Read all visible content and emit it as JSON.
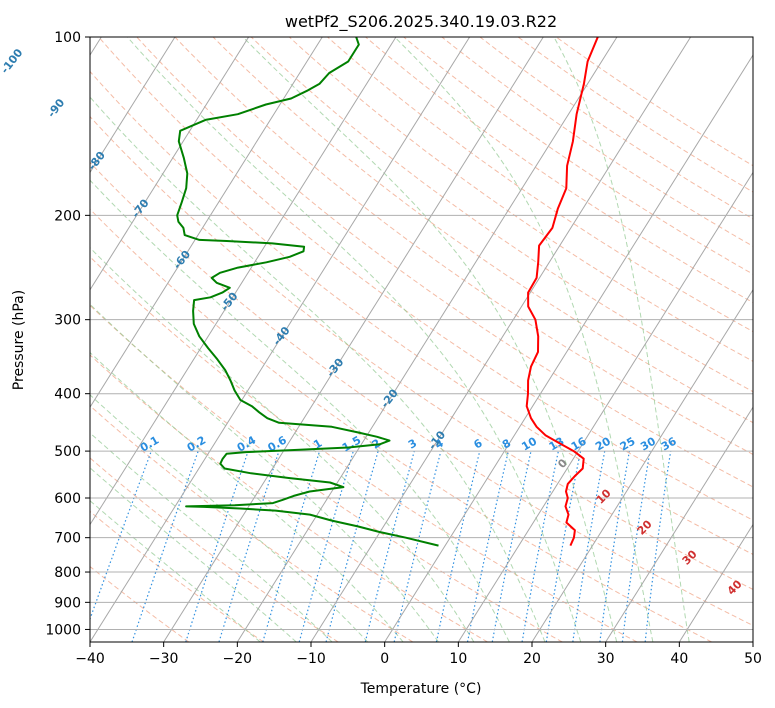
{
  "chart_data": {
    "type": "line",
    "subtype": "skew-t log-p",
    "title": "wetPf2_S206.2025.340.19.03.R22",
    "xlabel": "Temperature (°C)",
    "ylabel": "Pressure (hPa)",
    "xlim": [
      -40,
      50
    ],
    "ylim": [
      1050,
      100
    ],
    "y_scale": "log",
    "grid": true,
    "x_ticks": [
      -40,
      -30,
      -20,
      -10,
      0,
      10,
      20,
      30,
      40,
      50
    ],
    "x_tick_labels": [
      "−40",
      "−30",
      "−20",
      "−10",
      "0",
      "10",
      "20",
      "30",
      "40",
      "50"
    ],
    "y_ticks": [
      1000,
      900,
      800,
      700,
      600,
      500,
      400,
      300,
      200,
      100
    ],
    "y_tick_labels": [
      "1000",
      "900",
      "800",
      "700",
      "600",
      "500",
      "400",
      "300",
      "200",
      "100"
    ],
    "series": [
      {
        "color": "#ff0000",
        "points": [
          [
            722,
            17.0
          ],
          [
            700,
            16.8
          ],
          [
            680,
            16.3
          ],
          [
            660,
            14.5
          ],
          [
            640,
            14.1
          ],
          [
            620,
            13.0
          ],
          [
            600,
            12.6
          ],
          [
            585,
            11.8
          ],
          [
            568,
            11.4
          ],
          [
            550,
            11.7
          ],
          [
            535,
            12.1
          ],
          [
            515,
            11.4
          ],
          [
            500,
            9.4
          ],
          [
            485,
            6.8
          ],
          [
            470,
            4.2
          ],
          [
            455,
            2.3
          ],
          [
            440,
            0.8
          ],
          [
            420,
            -0.8
          ],
          [
            400,
            -1.7
          ],
          [
            380,
            -2.8
          ],
          [
            360,
            -3.6
          ],
          [
            340,
            -3.9
          ],
          [
            320,
            -5.2
          ],
          [
            300,
            -7.0
          ],
          [
            285,
            -9.1
          ],
          [
            270,
            -10.3
          ],
          [
            255,
            -10.4
          ],
          [
            240,
            -11.5
          ],
          [
            225,
            -12.8
          ],
          [
            210,
            -12.5
          ],
          [
            195,
            -13.4
          ],
          [
            180,
            -14.0
          ],
          [
            165,
            -15.8
          ],
          [
            150,
            -17.1
          ],
          [
            135,
            -18.9
          ],
          [
            120,
            -20.5
          ],
          [
            110,
            -21.9
          ],
          [
            100,
            -22.6
          ]
        ]
      },
      {
        "color": "#008000",
        "points": [
          [
            722,
            -0.9
          ],
          [
            700,
            -6.0
          ],
          [
            685,
            -10.0
          ],
          [
            670,
            -13.5
          ],
          [
            655,
            -17.5
          ],
          [
            640,
            -21.0
          ],
          [
            630,
            -26.0
          ],
          [
            625,
            -31.0
          ],
          [
            621,
            -36.0
          ],
          [
            620,
            -38.5
          ],
          [
            617,
            -32.0
          ],
          [
            612,
            -27.0
          ],
          [
            605,
            -26.0
          ],
          [
            595,
            -24.8
          ],
          [
            585,
            -23.0
          ],
          [
            575,
            -18.8
          ],
          [
            565,
            -21.0
          ],
          [
            555,
            -27.0
          ],
          [
            545,
            -32.5
          ],
          [
            535,
            -36.5
          ],
          [
            525,
            -37.5
          ],
          [
            515,
            -37.6
          ],
          [
            505,
            -37.5
          ],
          [
            502,
            -35.0
          ],
          [
            498,
            -29.0
          ],
          [
            493,
            -21.5
          ],
          [
            487,
            -17.5
          ],
          [
            480,
            -16.5
          ],
          [
            473,
            -18.5
          ],
          [
            465,
            -21.5
          ],
          [
            455,
            -25.5
          ],
          [
            448,
            -33.0
          ],
          [
            440,
            -35.0
          ],
          [
            430,
            -36.6
          ],
          [
            420,
            -38.1
          ],
          [
            410,
            -40.2
          ],
          [
            395,
            -41.8
          ],
          [
            380,
            -43.2
          ],
          [
            365,
            -44.8
          ],
          [
            350,
            -46.8
          ],
          [
            335,
            -49.0
          ],
          [
            320,
            -51.2
          ],
          [
            305,
            -53.0
          ],
          [
            290,
            -54.2
          ],
          [
            278,
            -55.0
          ],
          [
            275,
            -53.0
          ],
          [
            270,
            -51.8
          ],
          [
            265,
            -51.2
          ],
          [
            260,
            -53.4
          ],
          [
            255,
            -54.5
          ],
          [
            250,
            -53.8
          ],
          [
            245,
            -51.8
          ],
          [
            240,
            -48.4
          ],
          [
            235,
            -45.7
          ],
          [
            230,
            -44.3
          ],
          [
            226,
            -44.6
          ],
          [
            223,
            -49.2
          ],
          [
            221,
            -55.6
          ],
          [
            220,
            -59.4
          ],
          [
            216,
            -61.8
          ],
          [
            210,
            -62.6
          ],
          [
            205,
            -63.8
          ],
          [
            200,
            -64.5
          ],
          [
            190,
            -65.0
          ],
          [
            180,
            -65.6
          ],
          [
            170,
            -66.7
          ],
          [
            160,
            -68.5
          ],
          [
            150,
            -70.6
          ],
          [
            144,
            -71.3
          ],
          [
            138,
            -68.8
          ],
          [
            135,
            -64.9
          ],
          [
            130,
            -61.9
          ],
          [
            127,
            -59.0
          ],
          [
            123,
            -57.4
          ],
          [
            120,
            -56.4
          ],
          [
            115,
            -56.0
          ],
          [
            110,
            -54.4
          ],
          [
            103,
            -54.4
          ],
          [
            100,
            -55.4
          ]
        ]
      }
    ],
    "isotherm_labels": [
      "-100",
      "-90",
      "-80",
      "-70",
      "-60",
      "-50",
      "-40",
      "-30",
      "-20",
      "-10"
    ],
    "mixing_ratio_labels": [
      "0.1",
      "0.2",
      "0.4",
      "0.6",
      "1",
      "1.5",
      "2",
      "3",
      "4",
      "6",
      "8",
      "10",
      "13",
      "16",
      "20",
      "25",
      "30",
      "36"
    ],
    "moist_adiabat_labels": [
      "0",
      "10",
      "20",
      "30",
      "40"
    ]
  }
}
